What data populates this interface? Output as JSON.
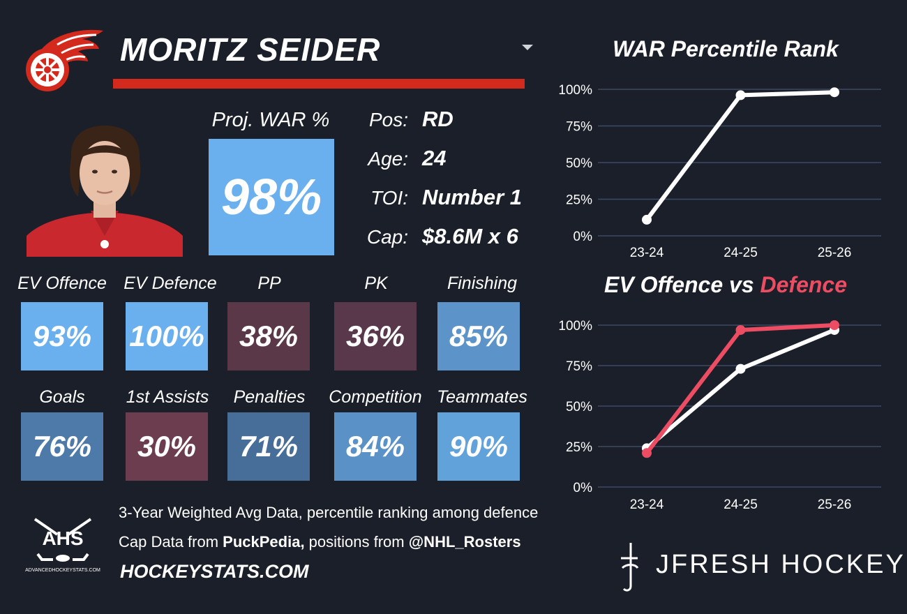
{
  "player": {
    "name": "MORITZ SEIDER"
  },
  "projection": {
    "label": "Proj. WAR %",
    "value": "98%"
  },
  "info": [
    {
      "label": "Pos:",
      "value": "RD"
    },
    {
      "label": "Age:",
      "value": "24"
    },
    {
      "label": "TOI:",
      "value": "Number 1"
    },
    {
      "label": "Cap:",
      "value": "$8.6M x 6"
    }
  ],
  "tiles": [
    {
      "label": "EV Offence",
      "value": "93%",
      "color": "#6ab0ef"
    },
    {
      "label": "EV Defence",
      "value": "100%",
      "color": "#6ab0ef"
    },
    {
      "label": "PP",
      "value": "38%",
      "color": "#5a3847"
    },
    {
      "label": "PK",
      "value": "36%",
      "color": "#58384a"
    },
    {
      "label": "Finishing",
      "value": "85%",
      "color": "#5c94c9"
    },
    {
      "label": "Goals",
      "value": "76%",
      "color": "#4d7aa8"
    },
    {
      "label": "1st Assists",
      "value": "30%",
      "color": "#6c3c4f"
    },
    {
      "label": "Penalties",
      "value": "71%",
      "color": "#466e98"
    },
    {
      "label": "Competition",
      "value": "84%",
      "color": "#5a92c8"
    },
    {
      "label": "Teammates",
      "value": "90%",
      "color": "#62a2db"
    }
  ],
  "footer": {
    "line1": "3-Year Weighted Avg Data, percentile ranking among defence",
    "line2_prefix": "Cap Data from ",
    "line2_source1": "PuckPedia,",
    "line2_mid": " positions from ",
    "line2_source2": "@NHL_Rosters",
    "site": "HOCKEYSTATS.COM",
    "ahs_logo_text": "AHS",
    "ahs_url": "ADVANCEDHOCKEYSTATS.COM",
    "brand": "JFRESH HOCKEY"
  },
  "icons": {
    "team": "red-wings-logo-icon",
    "dropdown": "chevron-down-icon",
    "ahs": "ahs-logo-icon",
    "brand": "jfresh-logo-icon"
  },
  "colors": {
    "background": "#1b1f29",
    "accent_red": "#d42a1e",
    "defence_series": "#ec4d63",
    "offence_series": "#ffffff"
  },
  "chart_data": [
    {
      "type": "line",
      "title": "WAR Percentile Rank",
      "categories": [
        "23-24",
        "24-25",
        "25-26"
      ],
      "series": [
        {
          "values": [
            11,
            96,
            98
          ],
          "color": "#ffffff"
        }
      ],
      "ylim": [
        0,
        100
      ],
      "yticks": [
        "0%",
        "25%",
        "50%",
        "75%",
        "100%"
      ],
      "grid": true
    },
    {
      "type": "line",
      "title_part1": "EV Offence vs ",
      "title_part2": "Defence",
      "categories": [
        "23-24",
        "24-25",
        "25-26"
      ],
      "series": [
        {
          "name": "EV Offence",
          "values": [
            24,
            73,
            97
          ],
          "color": "#ffffff"
        },
        {
          "name": "Defence",
          "values": [
            21,
            97,
            100
          ],
          "color": "#ec4d63"
        }
      ],
      "ylim": [
        0,
        100
      ],
      "yticks": [
        "0%",
        "25%",
        "50%",
        "75%",
        "100%"
      ],
      "grid": true
    }
  ]
}
